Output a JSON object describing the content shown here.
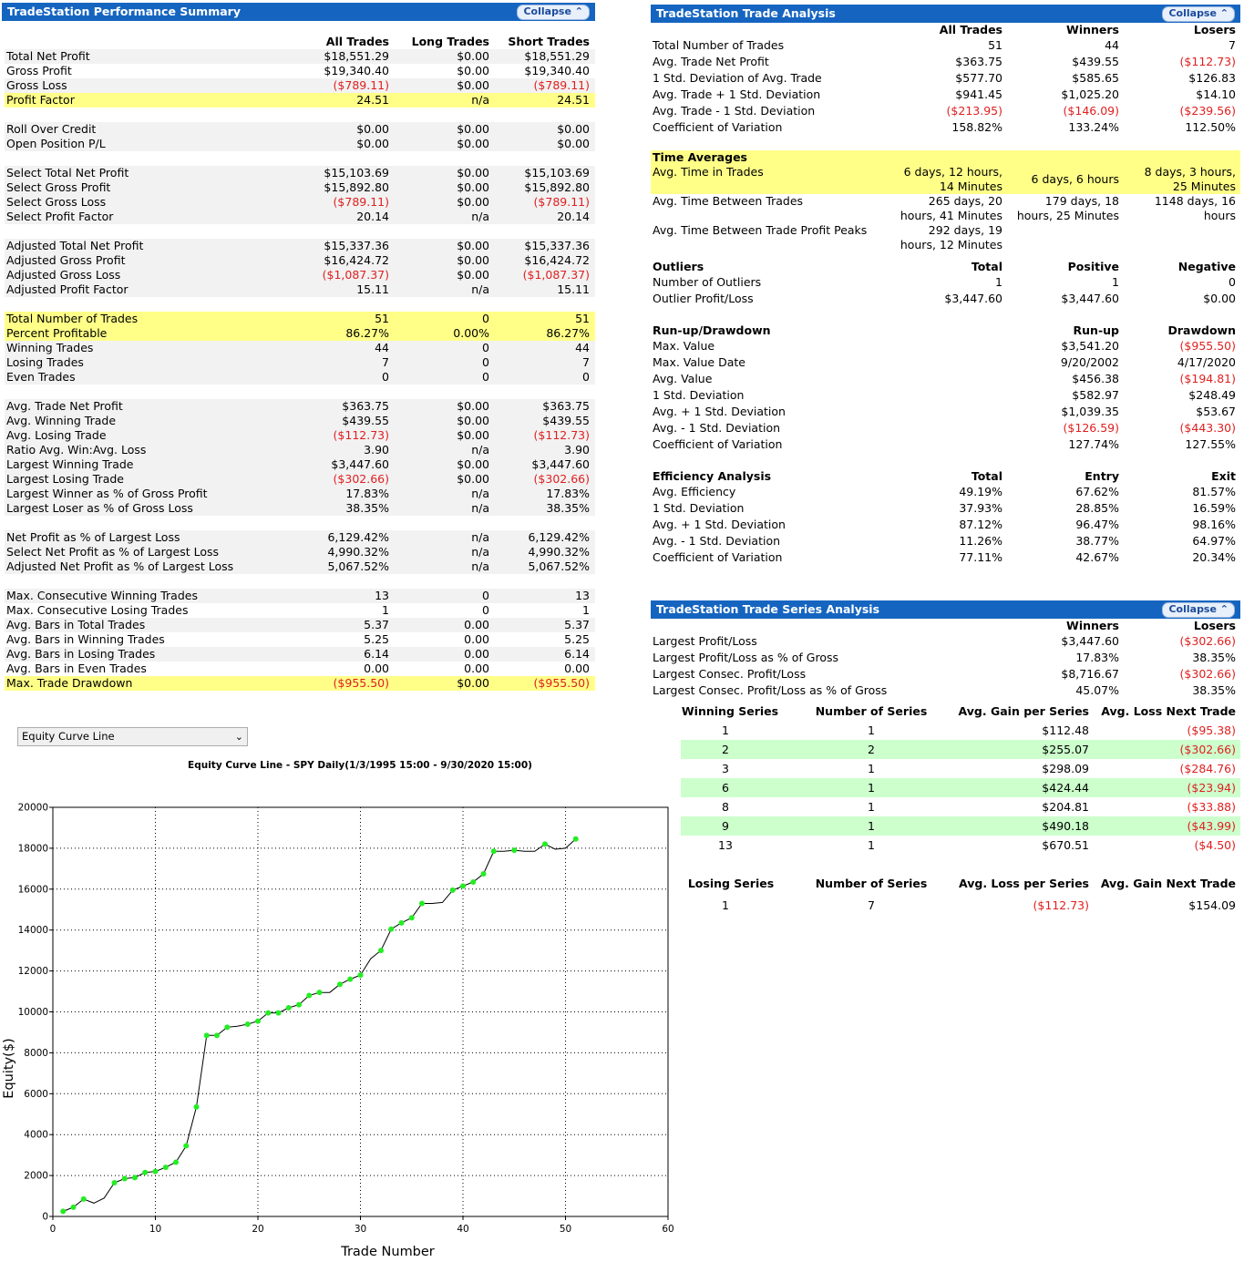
{
  "perf": {
    "title": "TradeStation Performance Summary",
    "collapse": "Collapse",
    "headers": [
      "All Trades",
      "Long Trades",
      "Short Trades"
    ],
    "rows": [
      {
        "label": "Total Net Profit",
        "v": [
          "$18,551.29",
          "$0.00",
          "$18,551.29"
        ],
        "bg": "gray"
      },
      {
        "label": "Gross Profit",
        "v": [
          "$19,340.40",
          "$0.00",
          "$19,340.40"
        ],
        "bg": ""
      },
      {
        "label": "Gross Loss",
        "v": [
          "($789.11)",
          "$0.00",
          "($789.11)"
        ],
        "bg": "gray"
      },
      {
        "label": "Profit Factor",
        "v": [
          "24.51",
          "n/a",
          "24.51"
        ],
        "bg": "hl"
      },
      {
        "label": "",
        "v": [
          "",
          "",
          ""
        ],
        "bg": ""
      },
      {
        "label": "Roll Over Credit",
        "v": [
          "$0.00",
          "$0.00",
          "$0.00"
        ],
        "bg": "gray"
      },
      {
        "label": "Open Position P/L",
        "v": [
          "$0.00",
          "$0.00",
          "$0.00"
        ],
        "bg": "gray"
      },
      {
        "label": "",
        "v": [
          "",
          "",
          ""
        ],
        "bg": ""
      },
      {
        "label": "Select Total Net Profit",
        "v": [
          "$15,103.69",
          "$0.00",
          "$15,103.69"
        ],
        "bg": "gray"
      },
      {
        "label": "Select Gross Profit",
        "v": [
          "$15,892.80",
          "$0.00",
          "$15,892.80"
        ],
        "bg": "gray"
      },
      {
        "label": "Select Gross Loss",
        "v": [
          "($789.11)",
          "$0.00",
          "($789.11)"
        ],
        "bg": "gray"
      },
      {
        "label": "Select Profit Factor",
        "v": [
          "20.14",
          "n/a",
          "20.14"
        ],
        "bg": "gray"
      },
      {
        "label": "",
        "v": [
          "",
          "",
          ""
        ],
        "bg": ""
      },
      {
        "label": "Adjusted Total Net Profit",
        "v": [
          "$15,337.36",
          "$0.00",
          "$15,337.36"
        ],
        "bg": "gray"
      },
      {
        "label": "Adjusted Gross Profit",
        "v": [
          "$16,424.72",
          "$0.00",
          "$16,424.72"
        ],
        "bg": "gray"
      },
      {
        "label": "Adjusted Gross Loss",
        "v": [
          "($1,087.37)",
          "$0.00",
          "($1,087.37)"
        ],
        "bg": "gray"
      },
      {
        "label": "Adjusted Profit Factor",
        "v": [
          "15.11",
          "n/a",
          "15.11"
        ],
        "bg": "gray"
      },
      {
        "label": "",
        "v": [
          "",
          "",
          ""
        ],
        "bg": ""
      },
      {
        "label": "Total Number of Trades",
        "v": [
          "51",
          "0",
          "51"
        ],
        "bg": "hl"
      },
      {
        "label": "Percent Profitable",
        "v": [
          "86.27%",
          "0.00%",
          "86.27%"
        ],
        "bg": "hl"
      },
      {
        "label": "Winning Trades",
        "v": [
          "44",
          "0",
          "44"
        ],
        "bg": "gray"
      },
      {
        "label": "Losing Trades",
        "v": [
          "7",
          "0",
          "7"
        ],
        "bg": "gray"
      },
      {
        "label": "Even Trades",
        "v": [
          "0",
          "0",
          "0"
        ],
        "bg": "gray"
      },
      {
        "label": "",
        "v": [
          "",
          "",
          ""
        ],
        "bg": ""
      },
      {
        "label": "Avg. Trade Net Profit",
        "v": [
          "$363.75",
          "$0.00",
          "$363.75"
        ],
        "bg": "gray"
      },
      {
        "label": "Avg. Winning Trade",
        "v": [
          "$439.55",
          "$0.00",
          "$439.55"
        ],
        "bg": "gray"
      },
      {
        "label": "Avg. Losing Trade",
        "v": [
          "($112.73)",
          "$0.00",
          "($112.73)"
        ],
        "bg": "gray"
      },
      {
        "label": "Ratio Avg. Win:Avg. Loss",
        "v": [
          "3.90",
          "n/a",
          "3.90"
        ],
        "bg": "gray"
      },
      {
        "label": "Largest Winning Trade",
        "v": [
          "$3,447.60",
          "$0.00",
          "$3,447.60"
        ],
        "bg": "gray"
      },
      {
        "label": "Largest Losing Trade",
        "v": [
          "($302.66)",
          "$0.00",
          "($302.66)"
        ],
        "bg": "gray"
      },
      {
        "label": "Largest Winner as % of Gross Profit",
        "v": [
          "17.83%",
          "n/a",
          "17.83%"
        ],
        "bg": "gray"
      },
      {
        "label": "Largest Loser as % of Gross Loss",
        "v": [
          "38.35%",
          "n/a",
          "38.35%"
        ],
        "bg": "gray"
      },
      {
        "label": "",
        "v": [
          "",
          "",
          ""
        ],
        "bg": ""
      },
      {
        "label": "Net Profit as % of Largest Loss",
        "v": [
          "6,129.42%",
          "n/a",
          "6,129.42%"
        ],
        "bg": "gray"
      },
      {
        "label": "Select Net Profit as % of Largest Loss",
        "v": [
          "4,990.32%",
          "n/a",
          "4,990.32%"
        ],
        "bg": "gray"
      },
      {
        "label": "Adjusted Net Profit as % of Largest Loss",
        "v": [
          "5,067.52%",
          "n/a",
          "5,067.52%"
        ],
        "bg": "gray"
      },
      {
        "label": "",
        "v": [
          "",
          "",
          ""
        ],
        "bg": ""
      },
      {
        "label": "Max. Consecutive Winning Trades",
        "v": [
          "13",
          "0",
          "13"
        ],
        "bg": "gray"
      },
      {
        "label": "Max. Consecutive Losing Trades",
        "v": [
          "1",
          "0",
          "1"
        ],
        "bg": ""
      },
      {
        "label": "Avg. Bars in Total Trades",
        "v": [
          "5.37",
          "0.00",
          "5.37"
        ],
        "bg": "gray"
      },
      {
        "label": "Avg. Bars in Winning Trades",
        "v": [
          "5.25",
          "0.00",
          "5.25"
        ],
        "bg": ""
      },
      {
        "label": "Avg. Bars in Losing Trades",
        "v": [
          "6.14",
          "0.00",
          "6.14"
        ],
        "bg": "gray"
      },
      {
        "label": "Avg. Bars in Even Trades",
        "v": [
          "0.00",
          "0.00",
          "0.00"
        ],
        "bg": ""
      },
      {
        "label": "Max. Trade Drawdown",
        "v": [
          "($955.50)",
          "$0.00",
          "($955.50)"
        ],
        "bg": "hl"
      }
    ]
  },
  "trade": {
    "title": "TradeStation Trade Analysis",
    "collapse": "Collapse",
    "headers": [
      "All Trades",
      "Winners",
      "Losers"
    ],
    "rows": [
      {
        "label": "Total Number of Trades",
        "v": [
          "51",
          "44",
          "7"
        ]
      },
      {
        "label": "Avg. Trade Net Profit",
        "v": [
          "$363.75",
          "$439.55",
          "($112.73)"
        ]
      },
      {
        "label": "1 Std. Deviation of Avg. Trade",
        "v": [
          "$577.70",
          "$585.65",
          "$126.83"
        ]
      },
      {
        "label": "Avg. Trade + 1 Std. Deviation",
        "v": [
          "$941.45",
          "$1,025.20",
          "$14.10"
        ]
      },
      {
        "label": "Avg. Trade - 1 Std. Deviation",
        "v": [
          "($213.95)",
          "($146.09)",
          "($239.56)"
        ]
      },
      {
        "label": "Coefficient of Variation",
        "v": [
          "158.82%",
          "133.24%",
          "112.50%"
        ]
      }
    ],
    "time": {
      "title": "Time Averages",
      "rows": [
        {
          "label": "Avg. Time in Trades",
          "l1": [
            "6 days, 12 hours,",
            "",
            "8 days, 3 hours,"
          ],
          "l2": [
            "14 Minutes",
            "6 days, 6 hours",
            "25 Minutes"
          ]
        },
        {
          "label": "Avg. Time Between Trades",
          "l1": [
            "265 days, 20",
            "179 days, 18",
            "1148 days, 16"
          ],
          "l2": [
            "hours, 41 Minutes",
            "hours, 25 Minutes",
            "hours"
          ]
        },
        {
          "label": "Avg. Time Between Trade Profit Peaks",
          "l1": [
            "292 days, 19",
            "",
            ""
          ],
          "l2": [
            "hours, 12 Minutes",
            "",
            ""
          ]
        }
      ]
    },
    "outliers": {
      "title": "Outliers",
      "headers": [
        "Total",
        "Positive",
        "Negative"
      ],
      "rows": [
        {
          "label": "Number of Outliers",
          "v": [
            "1",
            "1",
            "0"
          ]
        },
        {
          "label": "Outlier Profit/Loss",
          "v": [
            "$3,447.60",
            "$3,447.60",
            "$0.00"
          ]
        }
      ]
    },
    "runup": {
      "title": "Run-up/Drawdown",
      "headers": [
        "",
        "Run-up",
        "Drawdown"
      ],
      "rows": [
        {
          "label": "Max. Value",
          "v": [
            "",
            "$3,541.20",
            "($955.50)"
          ]
        },
        {
          "label": "Max. Value Date",
          "v": [
            "",
            "9/20/2002",
            "4/17/2020"
          ]
        },
        {
          "label": "Avg. Value",
          "v": [
            "",
            "$456.38",
            "($194.81)"
          ]
        },
        {
          "label": "1 Std. Deviation",
          "v": [
            "",
            "$582.97",
            "$248.49"
          ]
        },
        {
          "label": "Avg. + 1 Std. Deviation",
          "v": [
            "",
            "$1,039.35",
            "$53.67"
          ]
        },
        {
          "label": "Avg. - 1 Std. Deviation",
          "v": [
            "",
            "($126.59)",
            "($443.30)"
          ]
        },
        {
          "label": "Coefficient of Variation",
          "v": [
            "",
            "127.74%",
            "127.55%"
          ]
        }
      ]
    },
    "efficiency": {
      "title": "Efficiency Analysis",
      "headers": [
        "Total",
        "Entry",
        "Exit"
      ],
      "rows": [
        {
          "label": "Avg. Efficiency",
          "v": [
            "49.19%",
            "67.62%",
            "81.57%"
          ]
        },
        {
          "label": "1 Std. Deviation",
          "v": [
            "37.93%",
            "28.85%",
            "16.59%"
          ]
        },
        {
          "label": "Avg. + 1 Std. Deviation",
          "v": [
            "87.12%",
            "96.47%",
            "98.16%"
          ]
        },
        {
          "label": "Avg. - 1 Std. Deviation",
          "v": [
            "11.26%",
            "38.77%",
            "64.97%"
          ]
        },
        {
          "label": "Coefficient of Variation",
          "v": [
            "77.11%",
            "42.67%",
            "20.34%"
          ]
        }
      ]
    }
  },
  "series": {
    "title": "TradeStation Trade Series Analysis",
    "collapse": "Collapse",
    "headers": [
      "Winners",
      "Losers"
    ],
    "rows": [
      {
        "label": "Largest Profit/Loss",
        "v": [
          "$3,447.60",
          "($302.66)"
        ]
      },
      {
        "label": "Largest Profit/Loss as % of Gross",
        "v": [
          "17.83%",
          "38.35%"
        ]
      },
      {
        "label": "Largest Consec. Profit/Loss",
        "v": [
          "$8,716.67",
          "($302.66)"
        ]
      },
      {
        "label": "Largest Consec. Profit/Loss as % of Gross",
        "v": [
          "45.07%",
          "38.35%"
        ]
      }
    ],
    "winning": {
      "headers": [
        "Winning Series",
        "Number of Series",
        "Avg. Gain per Series",
        "Avg. Loss Next Trade"
      ],
      "rows": [
        [
          "1",
          "1",
          "$112.48",
          "($95.38)"
        ],
        [
          "2",
          "2",
          "$255.07",
          "($302.66)"
        ],
        [
          "3",
          "1",
          "$298.09",
          "($284.76)"
        ],
        [
          "6",
          "1",
          "$424.44",
          "($23.94)"
        ],
        [
          "8",
          "1",
          "$204.81",
          "($33.88)"
        ],
        [
          "9",
          "1",
          "$490.18",
          "($43.99)"
        ],
        [
          "13",
          "1",
          "$670.51",
          "($4.50)"
        ]
      ]
    },
    "losing": {
      "headers": [
        "Losing Series",
        "Number of Series",
        "Avg. Loss per Series",
        "Avg. Gain Next Trade"
      ],
      "rows": [
        [
          "1",
          "7",
          "($112.73)",
          "$154.09"
        ]
      ]
    }
  },
  "chart_select": {
    "value": "Equity Curve Line"
  },
  "chart_data": {
    "type": "line",
    "title": "Equity Curve Line - SPY Daily(1/3/1995 15:00 - 9/30/2020 15:00)",
    "xlabel": "Trade Number",
    "ylabel": "Equity($)",
    "xlim": [
      0,
      60
    ],
    "ylim": [
      0,
      20000
    ],
    "xticks": [
      0,
      10,
      20,
      30,
      40,
      50,
      60
    ],
    "yticks": [
      0,
      2000,
      4000,
      6000,
      8000,
      10000,
      12000,
      14000,
      16000,
      18000,
      20000
    ],
    "grid": true,
    "line_color": "#000000",
    "marker_color": "#22ee22",
    "series": [
      {
        "x": [
          1,
          2,
          3,
          4,
          5,
          6,
          7,
          8,
          9,
          10,
          11,
          12,
          13,
          14,
          15,
          16,
          17,
          18,
          19,
          20,
          21,
          22,
          23,
          24,
          25,
          26,
          27,
          28,
          29,
          30,
          31,
          32,
          33,
          34,
          35,
          36,
          37,
          38,
          39,
          40,
          41,
          42,
          43,
          44,
          45,
          46,
          47,
          48,
          49,
          50,
          51
        ],
        "y": [
          250,
          450,
          850,
          650,
          900,
          1650,
          1850,
          1900,
          2150,
          2200,
          2400,
          2650,
          3450,
          5350,
          8850,
          8850,
          9250,
          9300,
          9400,
          9550,
          9950,
          9950,
          10200,
          10350,
          10800,
          10950,
          10950,
          11350,
          11600,
          11800,
          12600,
          13000,
          14050,
          14350,
          14600,
          15300,
          15300,
          15350,
          15950,
          16150,
          16350,
          16750,
          17850,
          17850,
          17900,
          17850,
          17850,
          18200,
          17950,
          18000,
          18450
        ],
        "markers": [
          1,
          2,
          3,
          6,
          7,
          8,
          9,
          10,
          11,
          12,
          13,
          14,
          15,
          16,
          17,
          19,
          20,
          21,
          22,
          23,
          24,
          25,
          26,
          28,
          29,
          30,
          32,
          33,
          34,
          35,
          36,
          39,
          40,
          41,
          42,
          43,
          45,
          48,
          51
        ]
      }
    ]
  }
}
